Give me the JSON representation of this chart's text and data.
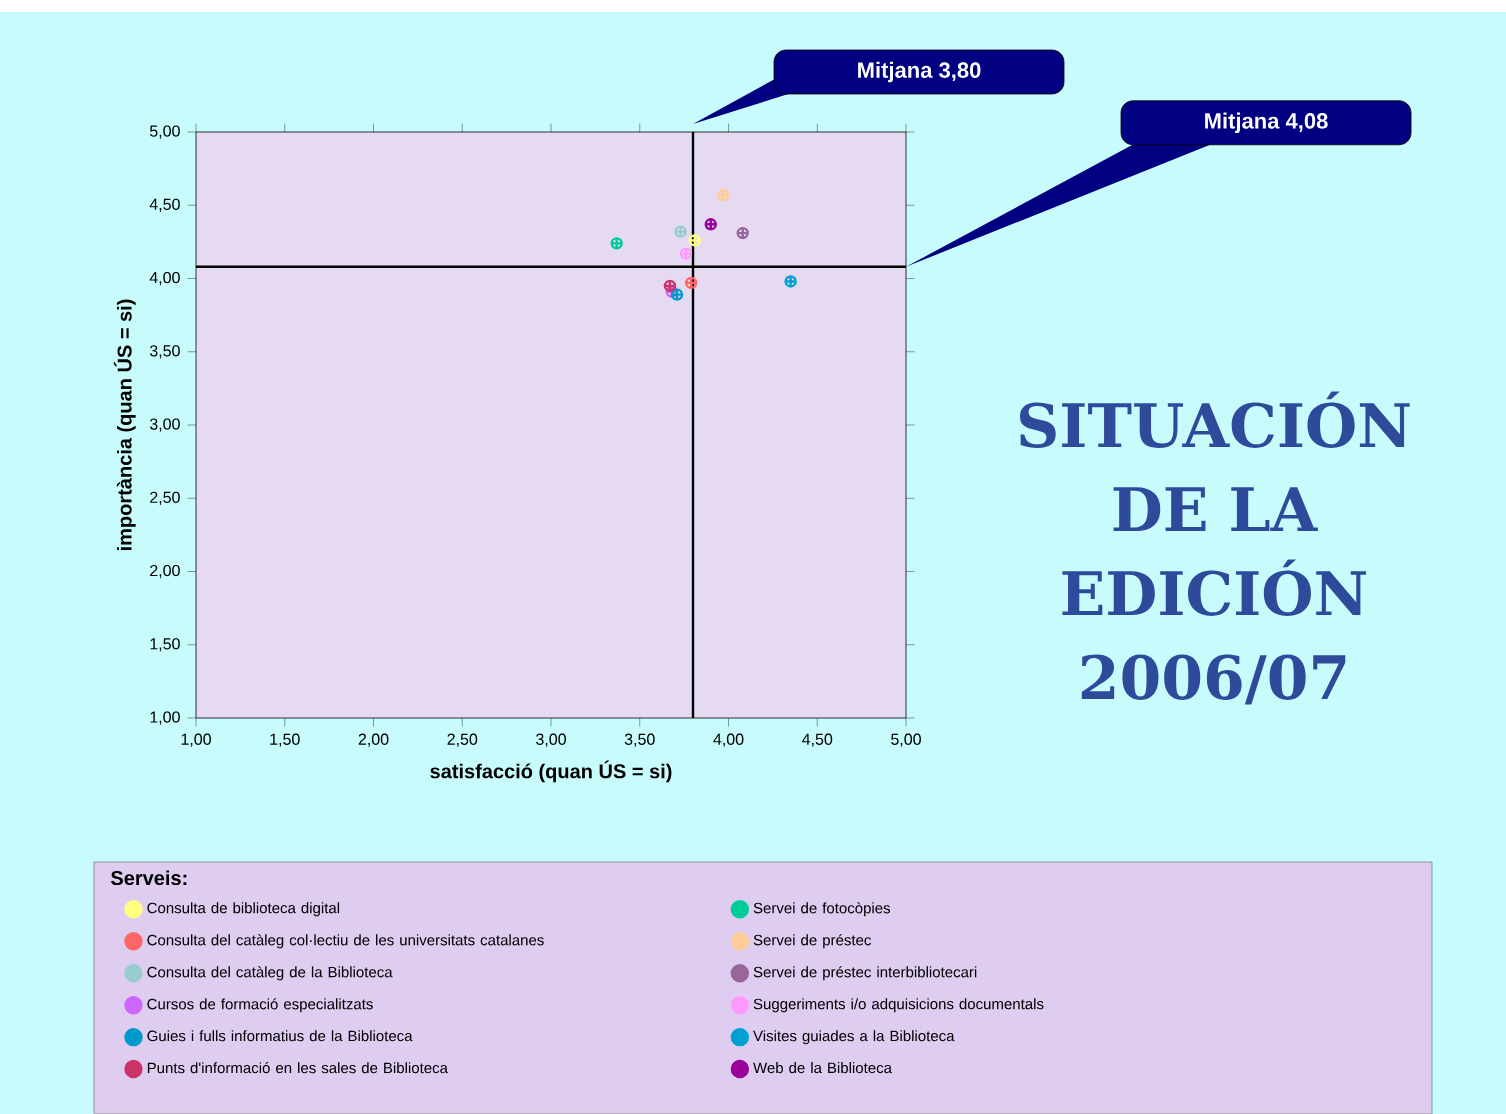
{
  "chart_data": {
    "type": "scatter",
    "title": "SITUACIÓN DE LA EDICIÓN 2006/07",
    "xlabel": "satisfacció (quan ÚS = si)",
    "ylabel": "importància (quan ÚS = si)",
    "legend_title": "Serveis:",
    "legend": "bottom",
    "marker": "cross",
    "xlim": [
      1,
      5
    ],
    "ylim": [
      1,
      5
    ],
    "xticks": [
      {
        "value": 1,
        "label": "1,00"
      },
      {
        "value": 1.5,
        "label": "1,50"
      },
      {
        "value": 2,
        "label": "2,00"
      },
      {
        "value": 2.5,
        "label": "2,50"
      },
      {
        "value": 3,
        "label": "3,00"
      },
      {
        "value": 3.5,
        "label": "3,50"
      },
      {
        "value": 4,
        "label": "4,00"
      },
      {
        "value": 4.5,
        "label": "4,50"
      },
      {
        "value": 5,
        "label": "5,00"
      }
    ],
    "yticks": [
      {
        "value": 1,
        "label": "1,00"
      },
      {
        "value": 1.5,
        "label": "1,50"
      },
      {
        "value": 2,
        "label": "2,00"
      },
      {
        "value": 2.5,
        "label": "2,50"
      },
      {
        "value": 3,
        "label": "3,00"
      },
      {
        "value": 3.5,
        "label": "3,50"
      },
      {
        "value": 4,
        "label": "4,00"
      },
      {
        "value": 4.5,
        "label": "4,50"
      },
      {
        "value": 5,
        "label": "5,00"
      }
    ],
    "ref_lines": [
      {
        "axis": "x",
        "value": 3.8,
        "label": "Mitjana 3,80",
        "color": "#000000"
      },
      {
        "axis": "y",
        "value": 4.08,
        "label": "Mitjana 4,08",
        "color": "#000000"
      }
    ],
    "series": [
      {
        "name": "Consulta de biblioteca digital",
        "color": "#ffff80",
        "x": [
          3.81
        ],
        "values": [
          4.26
        ]
      },
      {
        "name": "Consulta del catàleg col·lectiu de les universitats catalanes",
        "color": "#ff6666",
        "x": [
          3.79
        ],
        "values": [
          3.97
        ]
      },
      {
        "name": "Consulta del catàleg de la Biblioteca",
        "color": "#99cccc",
        "x": [
          3.73
        ],
        "values": [
          4.32
        ]
      },
      {
        "name": "Cursos de formació especialitzats",
        "color": "#cc66ff",
        "x": [
          3.68
        ],
        "values": [
          3.91
        ]
      },
      {
        "name": "Guies i fulls informatius de la Biblioteca",
        "color": "#0099cc",
        "x": [
          3.71
        ],
        "values": [
          3.89
        ]
      },
      {
        "name": "Punts d'informació en les sales de Biblioteca",
        "color": "#cc3366",
        "x": [
          3.67
        ],
        "values": [
          3.95
        ]
      },
      {
        "name": "Servei de fotocòpies",
        "color": "#00cc99",
        "x": [
          3.37
        ],
        "values": [
          4.24
        ]
      },
      {
        "name": "Servei de préstec",
        "color": "#ffcc99",
        "x": [
          3.97
        ],
        "values": [
          4.57
        ]
      },
      {
        "name": "Servei de préstec interbibliotecari",
        "color": "#996699",
        "x": [
          4.08
        ],
        "values": [
          4.31
        ]
      },
      {
        "name": "Suggeriments i/o adquisicions documentals",
        "color": "#ff99ff",
        "x": [
          3.76
        ],
        "values": [
          4.17
        ]
      },
      {
        "name": "Visites guiades a la Biblioteca",
        "color": "#00a0d0",
        "x": [
          4.35
        ],
        "values": [
          3.98
        ]
      },
      {
        "name": "Web de la Biblioteca",
        "color": "#990099",
        "x": [
          3.9
        ],
        "values": [
          4.37
        ]
      }
    ]
  }
}
